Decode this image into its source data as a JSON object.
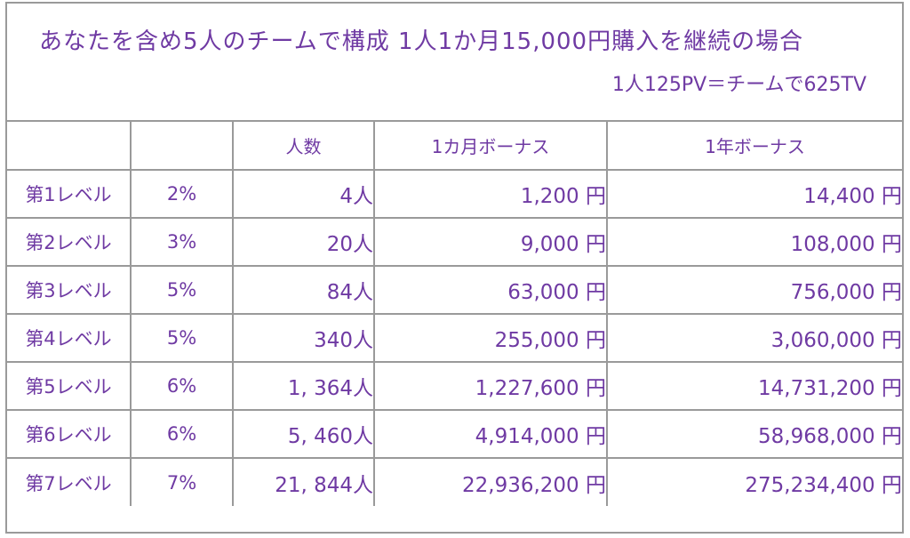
{
  "header": {
    "title": "あなたを含め5人のチームで構成  1人1か月15,000円購入を継続の場合",
    "subtitle": "1人125PV＝チームで625TV"
  },
  "columns": [
    "",
    "",
    "人数",
    "1カ月ボーナス",
    "1年ボーナス"
  ],
  "rows": [
    {
      "level": "第1レベル",
      "pct": "2%",
      "people": "4人",
      "monthly": "1,200 円",
      "yearly": "14,400 円"
    },
    {
      "level": "第2レベル",
      "pct": "3%",
      "people": "20人",
      "monthly": "9,000 円",
      "yearly": "108,000 円"
    },
    {
      "level": "第3レベル",
      "pct": "5%",
      "people": "84人",
      "monthly": "63,000 円",
      "yearly": "756,000 円"
    },
    {
      "level": "第4レベル",
      "pct": "5%",
      "people": "340人",
      "monthly": "255,000 円",
      "yearly": "3,060,000 円"
    },
    {
      "level": "第5レベル",
      "pct": "6%",
      "people": "1, 364人",
      "monthly": "1,227,600 円",
      "yearly": "14,731,200 円"
    },
    {
      "level": "第6レベル",
      "pct": "6%",
      "people": "5, 460人",
      "monthly": "4,914,000 円",
      "yearly": "58,968,000 円"
    },
    {
      "level": "第7レベル",
      "pct": "7%",
      "people": "21, 844人",
      "monthly": "22,936,200 円",
      "yearly": "275,234,400 円"
    }
  ],
  "colors": {
    "text": "#6f3aa3",
    "border": "#9a9a9a",
    "background": "#ffffff"
  }
}
